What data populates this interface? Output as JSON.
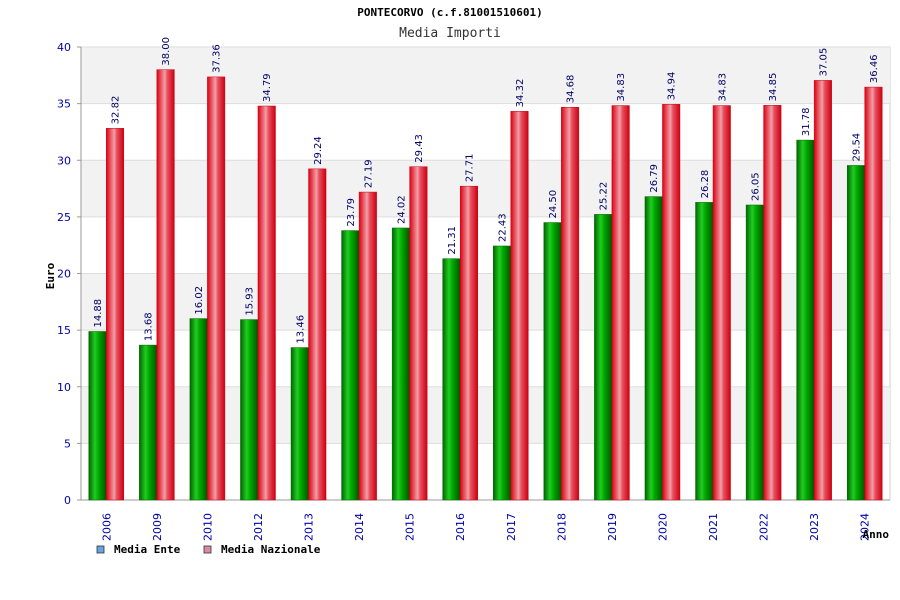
{
  "chart_data": {
    "type": "bar",
    "title": "PONTECORVO (c.f.81001510601)",
    "subtitle": "Media Importi",
    "ylabel": "Euro",
    "xlabel": "Anno",
    "ylim": [
      0,
      40
    ],
    "yticks": [
      0,
      5,
      10,
      15,
      20,
      25,
      30,
      35,
      40
    ],
    "grid": true,
    "legend_position": "bottom-left",
    "categories": [
      "2006",
      "2009",
      "2010",
      "2012",
      "2013",
      "2014",
      "2015",
      "2016",
      "2017",
      "2018",
      "2019",
      "2020",
      "2021",
      "2022",
      "2023",
      "2024"
    ],
    "series": [
      {
        "name": "Media Ente",
        "color": "#00aa00",
        "legend_color": "#66a3e0",
        "values": [
          14.88,
          13.68,
          16.02,
          15.93,
          13.46,
          23.79,
          24.02,
          21.31,
          22.43,
          24.5,
          25.22,
          26.79,
          26.28,
          26.05,
          31.78,
          29.54
        ],
        "labels": [
          "14.88",
          "13.68",
          "16.02",
          "15.93",
          "13.46",
          "23.79",
          "24.02",
          "21.31",
          "22.43",
          "24.50",
          "25.22",
          "26.79",
          "26.28",
          "26.05",
          "31.78",
          "29.54"
        ]
      },
      {
        "name": "Media Nazionale",
        "color": "#ee1122",
        "legend_color": "#d98aa6",
        "values": [
          32.82,
          38.0,
          37.36,
          34.79,
          29.24,
          27.19,
          29.43,
          27.71,
          34.32,
          34.68,
          34.83,
          34.94,
          34.83,
          34.85,
          37.05,
          36.46
        ],
        "labels": [
          "32.82",
          "38.00",
          "37.36",
          "34.79",
          "29.24",
          "27.19",
          "29.43",
          "27.71",
          "34.32",
          "34.68",
          "34.83",
          "34.94",
          "34.83",
          "34.85",
          "37.05",
          "36.46"
        ]
      }
    ]
  }
}
